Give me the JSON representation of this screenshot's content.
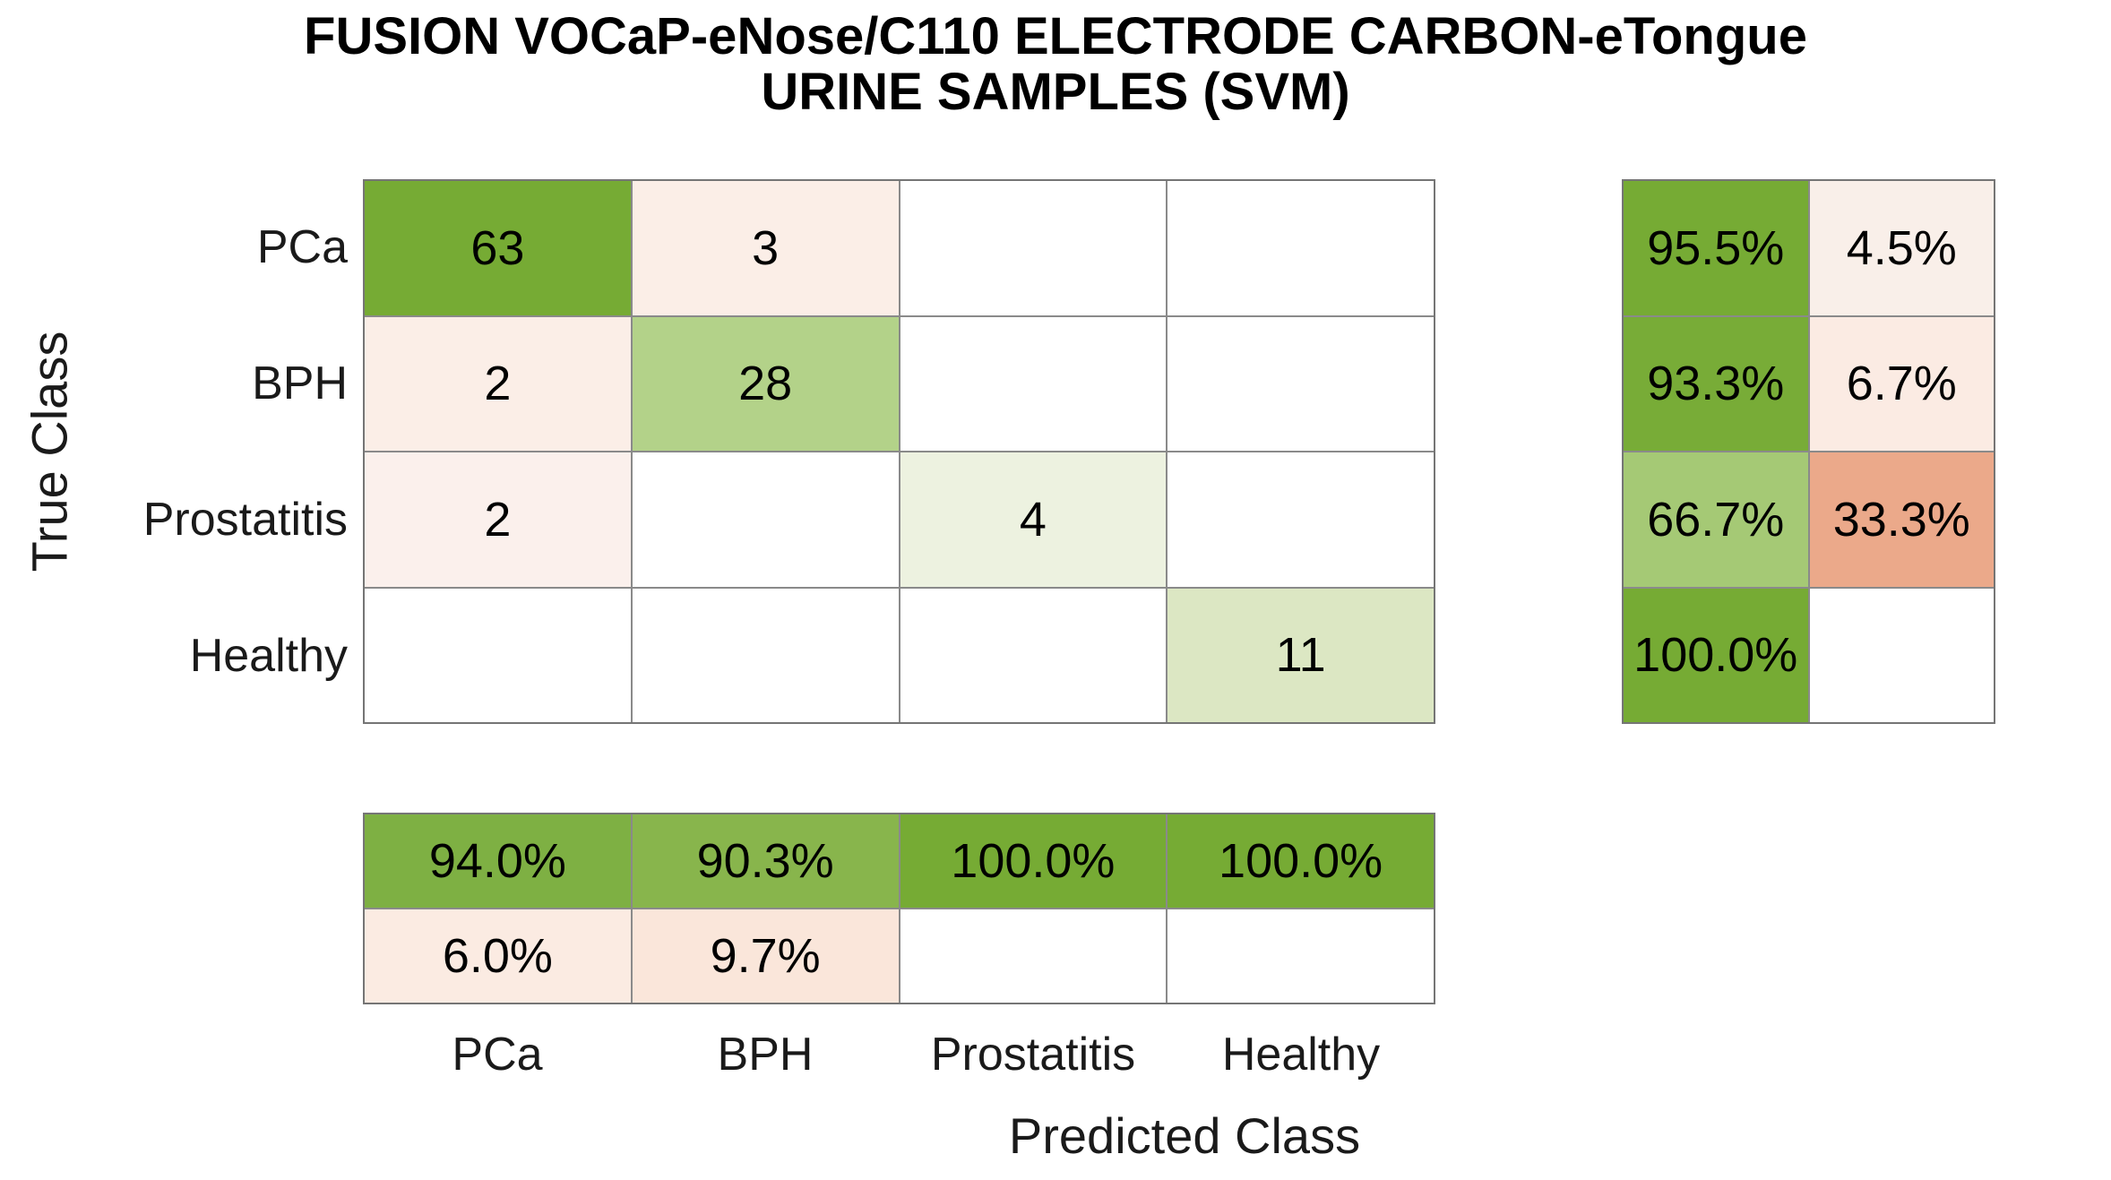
{
  "title": {
    "line1": "FUSION VOCaP-eNose/C110 ELECTRODE CARBON-eTongue",
    "line2": "URINE SAMPLES (SVM)"
  },
  "labels": {
    "y_axis": "True Class",
    "x_axis": "Predicted Class",
    "row_ticks": [
      "PCa",
      "BPH",
      "Prostatitis",
      "Healthy"
    ],
    "col_ticks": [
      "PCa",
      "BPH",
      "Prostatitis",
      "Healthy"
    ]
  },
  "colors": {
    "grid_line": "#8a8a8a",
    "border": "#757575",
    "diagonal_green_strong": "#76ab34",
    "diagonal_green_medium": "#b3d289",
    "diagonal_green_light": "#dce7c3",
    "off_diagonal_pink": "#fbeee7",
    "misclass_salmon": "#eba98a"
  },
  "chart_data": {
    "type": "heatmap",
    "subtype": "confusion-matrix",
    "title": "FUSION VOCaP-eNose/C110 ELECTRODE CARBON-eTongue URINE SAMPLES (SVM)",
    "xlabel": "Predicted Class",
    "ylabel": "True Class",
    "classes": [
      "PCa",
      "BPH",
      "Prostatitis",
      "Healthy"
    ],
    "matrix_counts": [
      [
        63,
        3,
        null,
        null
      ],
      [
        2,
        28,
        null,
        null
      ],
      [
        2,
        null,
        4,
        null
      ],
      [
        null,
        null,
        null,
        11
      ]
    ],
    "row_summary_pct": [
      [
        95.5,
        4.5
      ],
      [
        93.3,
        6.7
      ],
      [
        66.7,
        33.3
      ],
      [
        100.0,
        null
      ]
    ],
    "col_summary_pct": [
      [
        94.0,
        90.3,
        100.0,
        100.0
      ],
      [
        6.0,
        9.7,
        null,
        null
      ]
    ],
    "legend_position": "none",
    "grid": true
  },
  "display": {
    "main_matrix": [
      [
        {
          "text": "63",
          "bg": "#76ab34"
        },
        {
          "text": "3",
          "bg": "#fbeee7"
        },
        {
          "text": "",
          "bg": "#ffffff"
        },
        {
          "text": "",
          "bg": "#ffffff"
        }
      ],
      [
        {
          "text": "2",
          "bg": "#fbeee7"
        },
        {
          "text": "28",
          "bg": "#b3d289"
        },
        {
          "text": "",
          "bg": "#ffffff"
        },
        {
          "text": "",
          "bg": "#ffffff"
        }
      ],
      [
        {
          "text": "2",
          "bg": "#fbf0ec"
        },
        {
          "text": "",
          "bg": "#ffffff"
        },
        {
          "text": "4",
          "bg": "#edf2e0"
        },
        {
          "text": "",
          "bg": "#ffffff"
        }
      ],
      [
        {
          "text": "",
          "bg": "#ffffff"
        },
        {
          "text": "",
          "bg": "#ffffff"
        },
        {
          "text": "",
          "bg": "#ffffff"
        },
        {
          "text": "11",
          "bg": "#dce7c3"
        }
      ]
    ],
    "row_summary": [
      [
        {
          "text": "95.5%",
          "bg": "#76ab34"
        },
        {
          "text": "4.5%",
          "bg": "#f9efe9"
        }
      ],
      [
        {
          "text": "93.3%",
          "bg": "#78ac37"
        },
        {
          "text": "6.7%",
          "bg": "#fbebe3"
        }
      ],
      [
        {
          "text": "66.7%",
          "bg": "#a5c975"
        },
        {
          "text": "33.3%",
          "bg": "#eba98a"
        }
      ],
      [
        {
          "text": "100.0%",
          "bg": "#76ab34"
        },
        {
          "text": "",
          "bg": "#ffffff"
        }
      ]
    ],
    "col_summary": [
      [
        {
          "text": "94.0%",
          "bg": "#7eb043"
        },
        {
          "text": "90.3%",
          "bg": "#88b54c"
        },
        {
          "text": "100.0%",
          "bg": "#76ab34"
        },
        {
          "text": "100.0%",
          "bg": "#76ab34"
        }
      ],
      [
        {
          "text": "6.0%",
          "bg": "#fbebe2"
        },
        {
          "text": "9.7%",
          "bg": "#fae6da"
        },
        {
          "text": "",
          "bg": "#ffffff"
        },
        {
          "text": "",
          "bg": "#ffffff"
        }
      ]
    ]
  }
}
